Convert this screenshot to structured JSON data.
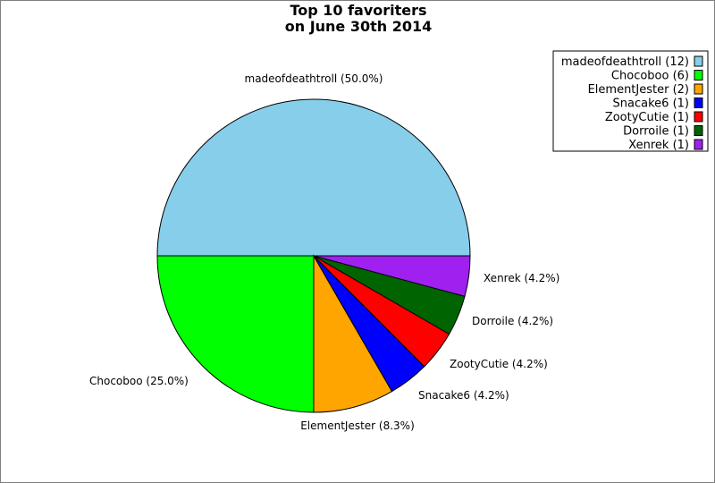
{
  "chart_data": {
    "type": "pie",
    "title_lines": [
      "Top 10 favoriters",
      "on June 30th 2014"
    ],
    "slices": [
      {
        "name": "madeofdeathtroll",
        "value": 12,
        "percent_label": "madeofdeathtroll (50.0%)",
        "legend_label": "madeofdeathtroll (12)",
        "color": "#87ceeb"
      },
      {
        "name": "Chocoboo",
        "value": 6,
        "percent_label": "Chocoboo (25.0%)",
        "legend_label": "Chocoboo (6)",
        "color": "#00ff00"
      },
      {
        "name": "ElementJester",
        "value": 2,
        "percent_label": "ElementJester (8.3%)",
        "legend_label": "ElementJester (2)",
        "color": "#ffa500"
      },
      {
        "name": "Snacake6",
        "value": 1,
        "percent_label": "Snacake6 (4.2%)",
        "legend_label": "Snacake6 (1)",
        "color": "#0000ff"
      },
      {
        "name": "ZootyCutie",
        "value": 1,
        "percent_label": "ZootyCutie (4.2%)",
        "legend_label": "ZootyCutie (1)",
        "color": "#ff0000"
      },
      {
        "name": "Dorroile",
        "value": 1,
        "percent_label": "Dorroile (4.2%)",
        "legend_label": "Dorroile (1)",
        "color": "#006400"
      },
      {
        "name": "Xenrek",
        "value": 1,
        "percent_label": "Xenrek (4.2%)",
        "legend_label": "Xenrek (1)",
        "color": "#a020f0"
      }
    ],
    "legend_position": "top-right"
  }
}
